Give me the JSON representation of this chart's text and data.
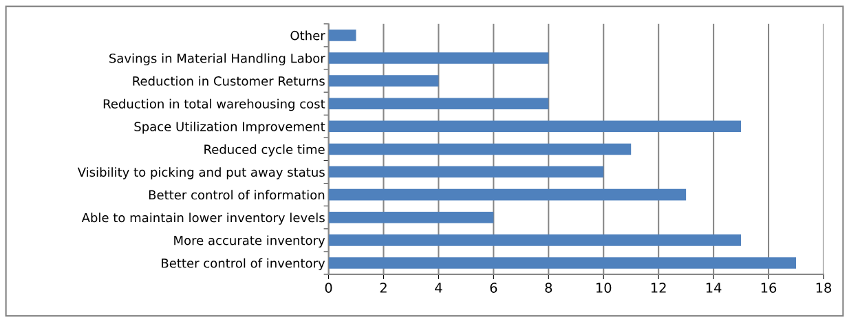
{
  "chart_data": {
    "type": "bar",
    "orientation": "horizontal",
    "categories": [
      "Other",
      "Savings in Material Handling Labor",
      "Reduction in Customer Returns",
      "Reduction in total warehousing cost",
      "Space Utilization Improvement",
      "Reduced cycle time",
      "Visibility to picking and put away status",
      "Better control of information",
      "Able to maintain lower inventory levels",
      "More accurate inventory",
      "Better control of inventory"
    ],
    "values": [
      1,
      8,
      4,
      8,
      15,
      11,
      10,
      13,
      6,
      15,
      17
    ],
    "color": "#4f81bd",
    "xlim": [
      0,
      18
    ],
    "xticks": [
      0,
      2,
      4,
      6,
      8,
      10,
      12,
      14,
      16,
      18
    ],
    "grid": "x",
    "legend": false
  }
}
